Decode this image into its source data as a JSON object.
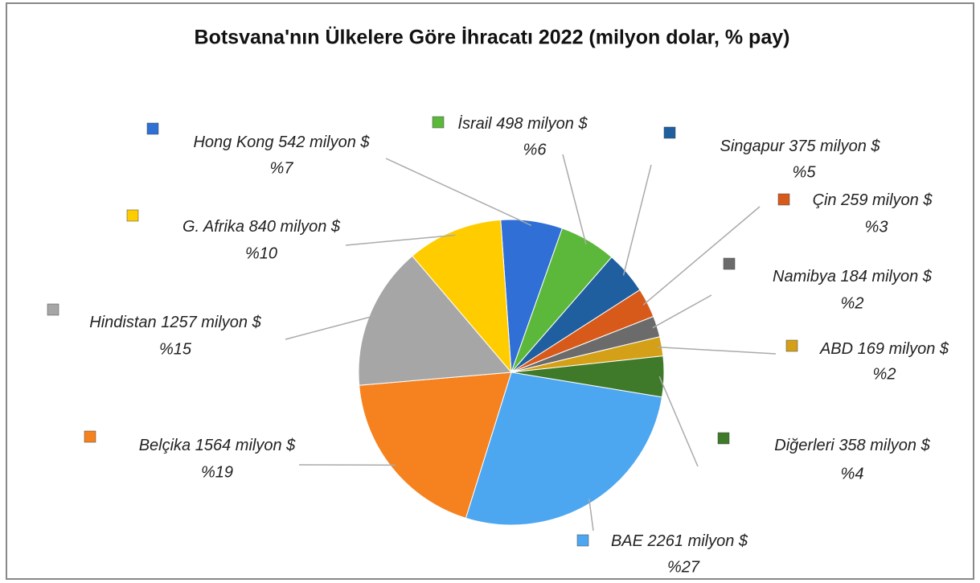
{
  "chart_data": {
    "type": "pie",
    "title": "Botsvana'nın Ülkelere Göre İhracatı 2022 (milyon dolar, % pay)",
    "categories": [
      "Hong Kong",
      "İsrail",
      "Singapur",
      "Çin",
      "Namibya",
      "ABD",
      "Diğerleri",
      "BAE",
      "Belçika",
      "Hindistan",
      "G. Afrika"
    ],
    "values": [
      542,
      498,
      375,
      259,
      184,
      169,
      358,
      2261,
      1564,
      1257,
      840
    ],
    "value_labels": [
      "542 milyon $",
      "498 milyon $",
      "375 milyon $",
      "259 milyon $",
      "184 milyon $",
      "169 milyon $",
      "358 milyon $",
      "2261 milyon $",
      "1564 milyon $",
      "1257 milyon $",
      "840 milyon $"
    ],
    "shares": [
      7,
      6,
      5,
      3,
      2,
      2,
      4,
      27,
      19,
      15,
      10
    ],
    "share_labels": [
      "%7",
      "%6",
      "%5",
      "%3",
      "%2",
      "%2",
      "%4",
      "%27",
      "%19",
      "%15",
      "%10"
    ],
    "colors": [
      "#2f6fd6",
      "#5cb83a",
      "#1f5fa0",
      "#d85a1a",
      "#6b6b6b",
      "#d4a017",
      "#3f7a2a",
      "#4da6f0",
      "#f5821f",
      "#a6a6a6",
      "#ffcc00"
    ]
  }
}
